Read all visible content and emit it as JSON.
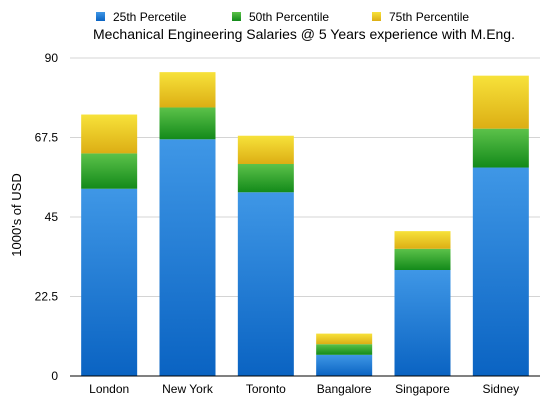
{
  "chart_data": {
    "type": "bar",
    "stacked": true,
    "title": "Mechanical Engineering Salaries @ 5 Years experience with M.Eng.",
    "xlabel": "",
    "ylabel": "1000's of USD",
    "ylim": [
      0,
      90
    ],
    "yticks": [
      "0",
      "22.5",
      "45",
      "67.5",
      "90"
    ],
    "grid": true,
    "legend_position": "top",
    "categories": [
      "London",
      "New York",
      "Toronto",
      "Bangalore",
      "Singapore",
      "Sidney"
    ],
    "series": [
      {
        "name": "25th Percetile",
        "color_top": "#3f97e6",
        "color_bottom": "#0a63c2",
        "values": [
          53,
          67,
          52,
          6,
          30,
          59
        ]
      },
      {
        "name": "50th Percentile",
        "color_top": "#5cc24a",
        "color_bottom": "#138a1a",
        "values": [
          10,
          9,
          8,
          3,
          6,
          11
        ]
      },
      {
        "name": "75th Percentile",
        "color_top": "#f7e23a",
        "color_bottom": "#dcae14",
        "values": [
          11,
          10,
          8,
          3,
          5,
          15
        ]
      }
    ]
  }
}
